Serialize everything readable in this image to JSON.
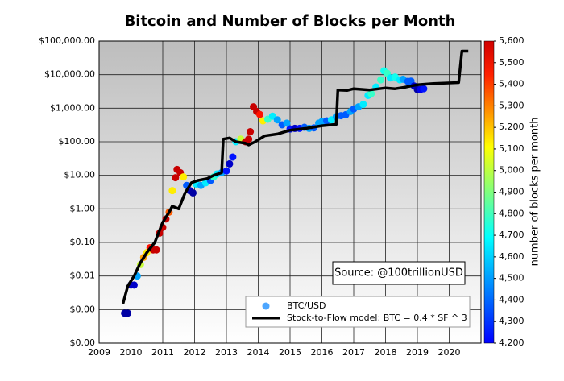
{
  "chart_data": {
    "type": "scatter",
    "title": "Bitcoin and Number of Blocks per Month",
    "annotation": "Source: @100trillionUSD",
    "colorbar_label": "number of blocks per month",
    "colormap": "jet",
    "clim": [
      4200,
      5600
    ],
    "cticks": [
      {
        "value": 4200,
        "label": "4,200"
      },
      {
        "value": 4300,
        "label": "4,300"
      },
      {
        "value": 4400,
        "label": "4,400"
      },
      {
        "value": 4500,
        "label": "4,500"
      },
      {
        "value": 4600,
        "label": "4,600"
      },
      {
        "value": 4700,
        "label": "4,700"
      },
      {
        "value": 4800,
        "label": "4,800"
      },
      {
        "value": 4900,
        "label": "4,900"
      },
      {
        "value": 5000,
        "label": "5,000"
      },
      {
        "value": 5100,
        "label": "5,100"
      },
      {
        "value": 5200,
        "label": "5,200"
      },
      {
        "value": 5300,
        "label": "5,300"
      },
      {
        "value": 5400,
        "label": "5,400"
      },
      {
        "value": 5500,
        "label": "5,500"
      },
      {
        "value": 5600,
        "label": "5,600"
      }
    ],
    "xlim": [
      2009,
      2021
    ],
    "xticks": [
      2009,
      2010,
      2011,
      2012,
      2013,
      2014,
      2015,
      2016,
      2017,
      2018,
      2019,
      2020
    ],
    "ylim": [
      0.0001,
      100000
    ],
    "log_y": true,
    "grid": true,
    "legend": "lower right",
    "yticks": [
      {
        "value": 0.0001,
        "label": "$0.00"
      },
      {
        "value": 0.001,
        "label": "$0.00"
      },
      {
        "value": 0.01,
        "label": "$0.01"
      },
      {
        "value": 0.1,
        "label": "$0.10"
      },
      {
        "value": 1,
        "label": "$1.00"
      },
      {
        "value": 10,
        "label": "$10.00"
      },
      {
        "value": 100,
        "label": "$100.00"
      },
      {
        "value": 1000,
        "label": "$1,000.00"
      },
      {
        "value": 10000,
        "label": "$10,000.00"
      },
      {
        "value": 100000,
        "label": "$100,000.00"
      }
    ],
    "series": [
      {
        "name": "BTC/USD",
        "type": "scatter",
        "x": [
          2009.8,
          2009.9,
          2010.0,
          2010.1,
          2010.2,
          2010.3,
          2010.4,
          2010.5,
          2010.6,
          2010.7,
          2010.8,
          2010.9,
          2011.0,
          2011.1,
          2011.2,
          2011.3,
          2011.4,
          2011.45,
          2011.55,
          2011.65,
          2011.75,
          2011.85,
          2011.95,
          2012.05,
          2012.2,
          2012.35,
          2012.5,
          2012.6,
          2012.7,
          2012.85,
          2013.0,
          2013.1,
          2013.2,
          2013.3,
          2013.45,
          2013.6,
          2013.7,
          2013.75,
          2013.85,
          2013.95,
          2014.05,
          2014.15,
          2014.3,
          2014.45,
          2014.6,
          2014.75,
          2014.9,
          2015.0,
          2015.15,
          2015.3,
          2015.45,
          2015.6,
          2015.75,
          2015.9,
          2016.0,
          2016.15,
          2016.3,
          2016.45,
          2016.6,
          2016.75,
          2016.9,
          2017.0,
          2017.15,
          2017.3,
          2017.45,
          2017.55,
          2017.7,
          2017.85,
          2017.95,
          2018.05,
          2018.15,
          2018.3,
          2018.45,
          2018.55,
          2018.7,
          2018.8,
          2018.9,
          2019.0,
          2019.1,
          2019.2
        ],
        "y": [
          0.00078,
          0.00078,
          0.0054,
          0.0054,
          0.01,
          0.022,
          0.036,
          0.05,
          0.07,
          0.06,
          0.06,
          0.19,
          0.28,
          0.5,
          0.8,
          3.5,
          8.5,
          15,
          12,
          9,
          5,
          3.5,
          3,
          5.5,
          5,
          6,
          7,
          9,
          11,
          12,
          13.5,
          22,
          35,
          100,
          120,
          100,
          120,
          200,
          1100,
          800,
          650,
          420,
          470,
          580,
          450,
          320,
          360,
          240,
          250,
          250,
          270,
          250,
          260,
          360,
          400,
          420,
          450,
          560,
          600,
          640,
          800,
          950,
          1100,
          1300,
          2400,
          2700,
          4300,
          7000,
          13000,
          11000,
          8000,
          8500,
          7000,
          7300,
          6300,
          6400,
          4600,
          3600,
          3600,
          3800
        ],
        "c": [
          4250,
          4250,
          4300,
          4300,
          4600,
          5000,
          5200,
          5100,
          5400,
          5500,
          5500,
          5500,
          5500,
          5500,
          5300,
          5100,
          5500,
          5500,
          5500,
          5100,
          4500,
          4300,
          4250,
          4700,
          4600,
          4700,
          4500,
          4800,
          4700,
          4600,
          4400,
          4300,
          4400,
          4700,
          5000,
          5500,
          5500,
          5500,
          5500,
          5500,
          5400,
          5100,
          4800,
          4700,
          4600,
          4500,
          4600,
          4400,
          4300,
          4400,
          4500,
          4600,
          4500,
          4600,
          4600,
          4500,
          4700,
          4600,
          4500,
          4500,
          4600,
          4500,
          4600,
          4700,
          4700,
          4800,
          4700,
          4800,
          4750,
          4800,
          4700,
          4750,
          4700,
          4600,
          4500,
          4500,
          4300,
          4250,
          4350,
          4400
        ]
      },
      {
        "name": "Stock-to-Flow model: BTC = 0.4 * SF ^ 3",
        "type": "line",
        "color": "#000000",
        "x": [
          2009.75,
          2009.9,
          2010.1,
          2010.3,
          2010.5,
          2010.75,
          2011.0,
          2011.2,
          2011.3,
          2011.5,
          2011.7,
          2011.9,
          2012.1,
          2012.4,
          2012.6,
          2012.85,
          2012.9,
          2013.1,
          2013.3,
          2013.6,
          2013.7,
          2013.9,
          2014.2,
          2014.6,
          2015.0,
          2015.5,
          2016.0,
          2016.45,
          2016.5,
          2016.8,
          2017.0,
          2017.5,
          2017.8,
          2018.0,
          2018.3,
          2018.6,
          2019.0,
          2019.5,
          2020.3,
          2020.4,
          2020.6
        ],
        "y": [
          0.0015,
          0.005,
          0.01,
          0.025,
          0.05,
          0.1,
          0.4,
          0.8,
          1.2,
          1.0,
          3,
          6,
          7,
          8,
          10,
          12,
          120,
          130,
          100,
          90,
          80,
          100,
          150,
          170,
          220,
          250,
          300,
          330,
          3500,
          3400,
          3800,
          3500,
          3800,
          4000,
          3800,
          4200,
          5000,
          5400,
          5800,
          50000,
          50000
        ]
      }
    ]
  }
}
